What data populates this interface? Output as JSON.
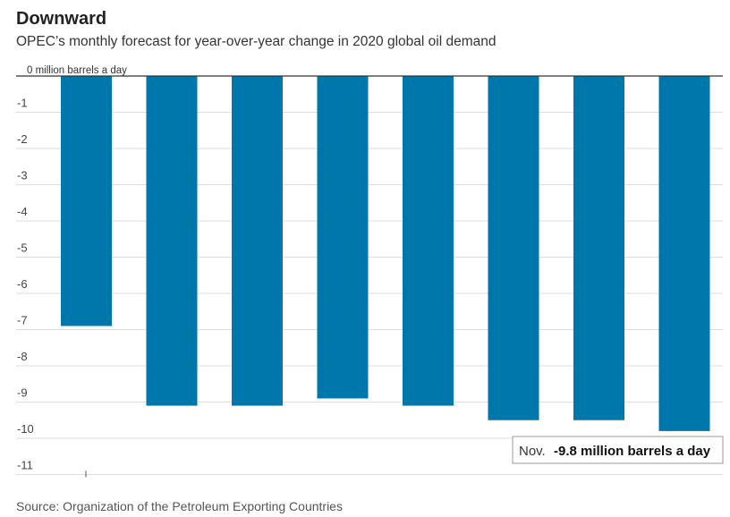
{
  "header": {
    "title": "Downward",
    "subtitle": "OPEC’s monthly forecast for year-over-year change in 2020 global oil demand"
  },
  "footer": {
    "source": "Source: Organization of the Petroleum Exporting Countries"
  },
  "colors": {
    "bar": "#0077aa",
    "grid": "#dddddd",
    "zero_line": "#333333"
  },
  "chart_data": {
    "type": "bar",
    "title": "Downward",
    "subtitle": "OPEC’s monthly forecast for year-over-year change in 2020 global oil demand",
    "ylabel": "million barrels a day",
    "categories": [
      "",
      "",
      "",
      "",
      "",
      "",
      "",
      ""
    ],
    "values": [
      -6.9,
      -9.1,
      -9.1,
      -8.9,
      -9.1,
      -9.5,
      -9.5,
      -9.8
    ],
    "ylim": [
      -11,
      0
    ],
    "y_ticks": [
      0,
      -1,
      -2,
      -3,
      -4,
      -5,
      -6,
      -7,
      -8,
      -9,
      -10,
      -11
    ],
    "y_tick_labels": [
      "0 million barrels a day",
      "-1",
      "-2",
      "-3",
      "-4",
      "-5",
      "-6",
      "-7",
      "-8",
      "-9",
      "-10",
      "-11"
    ],
    "grid": true,
    "annotation": {
      "prefix": "Nov.",
      "value": "-9.8 million barrels a day"
    }
  }
}
